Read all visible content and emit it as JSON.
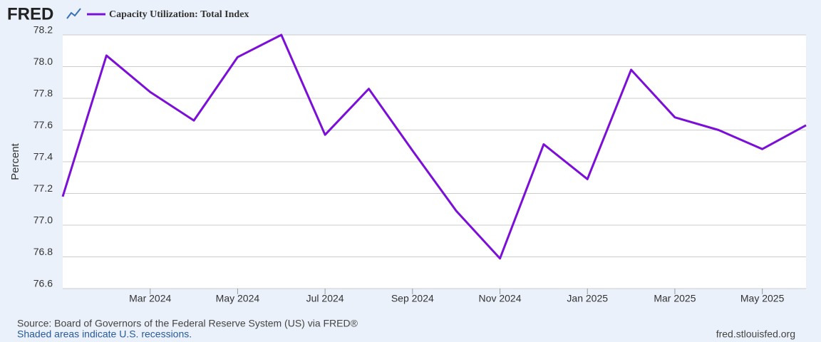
{
  "chart_data": {
    "type": "line",
    "logo": "FRED",
    "title": "Capacity Utilization: Total Index",
    "y_label": "Percent",
    "source": "Source: Board of Governors of the Federal Reserve System (US) via FRED®",
    "note": "Shaded areas indicate U.S. recessions.",
    "url": "fred.stlouisfed.org",
    "categories": [
      null,
      null,
      "Mar 2024",
      null,
      "May 2024",
      null,
      "Jul 2024",
      null,
      "Sep 2024",
      null,
      "Nov 2024",
      null,
      "Jan 2025",
      null,
      "Mar 2025",
      null,
      "May 2025",
      null
    ],
    "series": [
      {
        "name": "Capacity Utilization: Total Index",
        "color": "#7b0fd8",
        "values": [
          77.18,
          78.07,
          77.84,
          77.66,
          78.06,
          78.2,
          77.57,
          77.86,
          77.47,
          77.09,
          76.79,
          77.51,
          77.29,
          77.98,
          77.68,
          77.6,
          77.48,
          77.63
        ]
      }
    ],
    "ylim": [
      76.6,
      78.2
    ],
    "yticks": [
      76.6,
      76.8,
      {
        "value": 77,
        "label": "77.0"
      },
      77.2,
      77.4,
      77.6,
      77.8,
      {
        "value": 78,
        "label": "78.0"
      },
      78.2
    ],
    "grid": true
  }
}
